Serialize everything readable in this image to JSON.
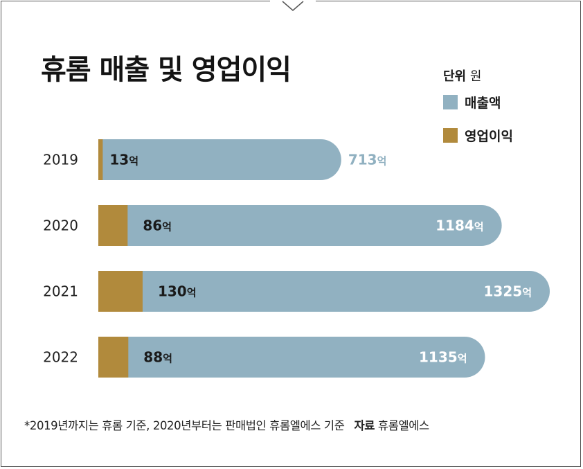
{
  "title": "휴롬 매출 및 영업이익",
  "legend": {
    "unit_label": "단위",
    "unit_value": "원",
    "items": [
      {
        "label": "매출액",
        "color": "#91b1c1"
      },
      {
        "label": "영업이익",
        "color": "#b18a3c"
      }
    ]
  },
  "footnote": {
    "text": "*2019년까지는 휴롬 기준, 2020년부터는 판매법인 휴롬엘에스 기준",
    "source_label": "자료",
    "source_value": "휴롬엘에스"
  },
  "chart_data": {
    "type": "bar",
    "orientation": "horizontal",
    "categories": [
      "2019",
      "2020",
      "2021",
      "2022"
    ],
    "series": [
      {
        "name": "매출액",
        "values": [
          713,
          1184,
          1325,
          1135
        ],
        "color": "#91b1c1"
      },
      {
        "name": "영업이익",
        "values": [
          13,
          86,
          130,
          88
        ],
        "color": "#b18a3c"
      }
    ],
    "value_suffix": "억",
    "label_colors": {
      "revenue_outside": "#91b1c1",
      "revenue_inside": "#ffffff",
      "profit": "#1a1a1a"
    }
  }
}
